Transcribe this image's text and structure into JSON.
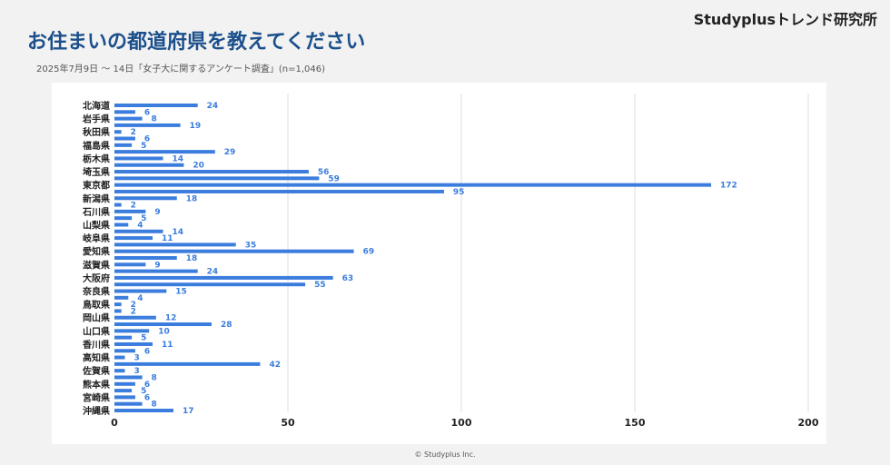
{
  "header": {
    "brand": "Studyplusトレンド研究所",
    "title": "お住まいの都道府県を教えてください",
    "subtitle": "2025年7月9日 〜 14日「女子大に関するアンケート調査」(n=1,046)"
  },
  "footer": {
    "copyright": "© Studyplus Inc."
  },
  "colors": {
    "bar": "#3b7ddd",
    "label": "#3b7ddd",
    "grid": "#dddddd",
    "title": "#1b4f8c"
  },
  "chart_data": {
    "type": "bar",
    "orientation": "horizontal",
    "xlim": [
      0,
      200
    ],
    "xticks": [
      0,
      50,
      100,
      150,
      200
    ],
    "grid": true,
    "category_labels": [
      "北海道",
      "岩手県",
      "秋田県",
      "福島県",
      "栃木県",
      "埼玉県",
      "東京都",
      "新潟県",
      "石川県",
      "山梨県",
      "岐阜県",
      "愛知県",
      "滋賀県",
      "大阪府",
      "奈良県",
      "鳥取県",
      "岡山県",
      "山口県",
      "香川県",
      "高知県",
      "佐賀県",
      "熊本県",
      "宮崎県",
      "沖縄県"
    ],
    "values": [
      24,
      6,
      8,
      19,
      2,
      6,
      5,
      29,
      14,
      20,
      56,
      59,
      172,
      95,
      18,
      2,
      9,
      5,
      4,
      14,
      11,
      35,
      69,
      18,
      9,
      24,
      63,
      55,
      15,
      4,
      2,
      2,
      12,
      28,
      10,
      5,
      11,
      6,
      3,
      42,
      3,
      8,
      6,
      5,
      6,
      8,
      17
    ]
  }
}
